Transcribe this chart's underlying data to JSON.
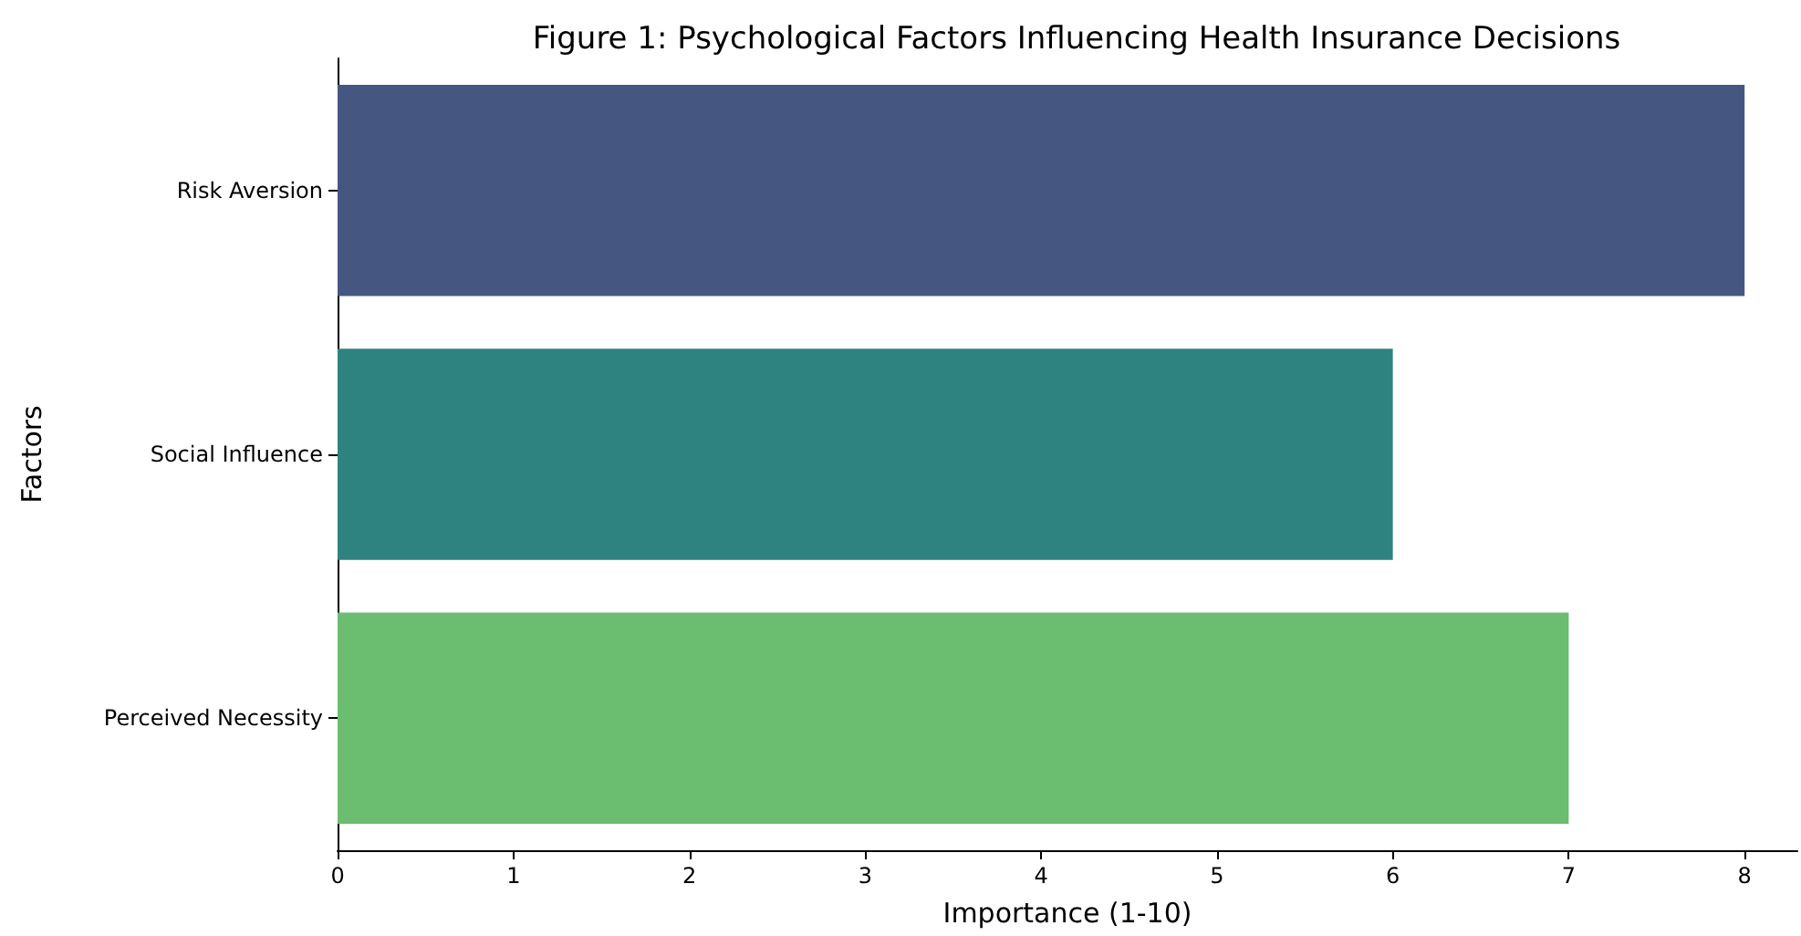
{
  "chart_data": {
    "type": "bar",
    "orientation": "horizontal",
    "title": "Figure 1: Psychological Factors Influencing Health Insurance Decisions",
    "xlabel": "Importance (1-10)",
    "ylabel": "Factors",
    "categories": [
      "Risk Aversion",
      "Social Influence",
      "Perceived Necessity"
    ],
    "values": [
      8,
      6,
      7
    ],
    "colors": [
      "#455681",
      "#2e8280",
      "#6bbd6f"
    ],
    "xlim": [
      0,
      8.3
    ],
    "xticks": [
      0,
      1,
      2,
      3,
      4,
      5,
      6,
      7,
      8
    ],
    "grid": false
  }
}
